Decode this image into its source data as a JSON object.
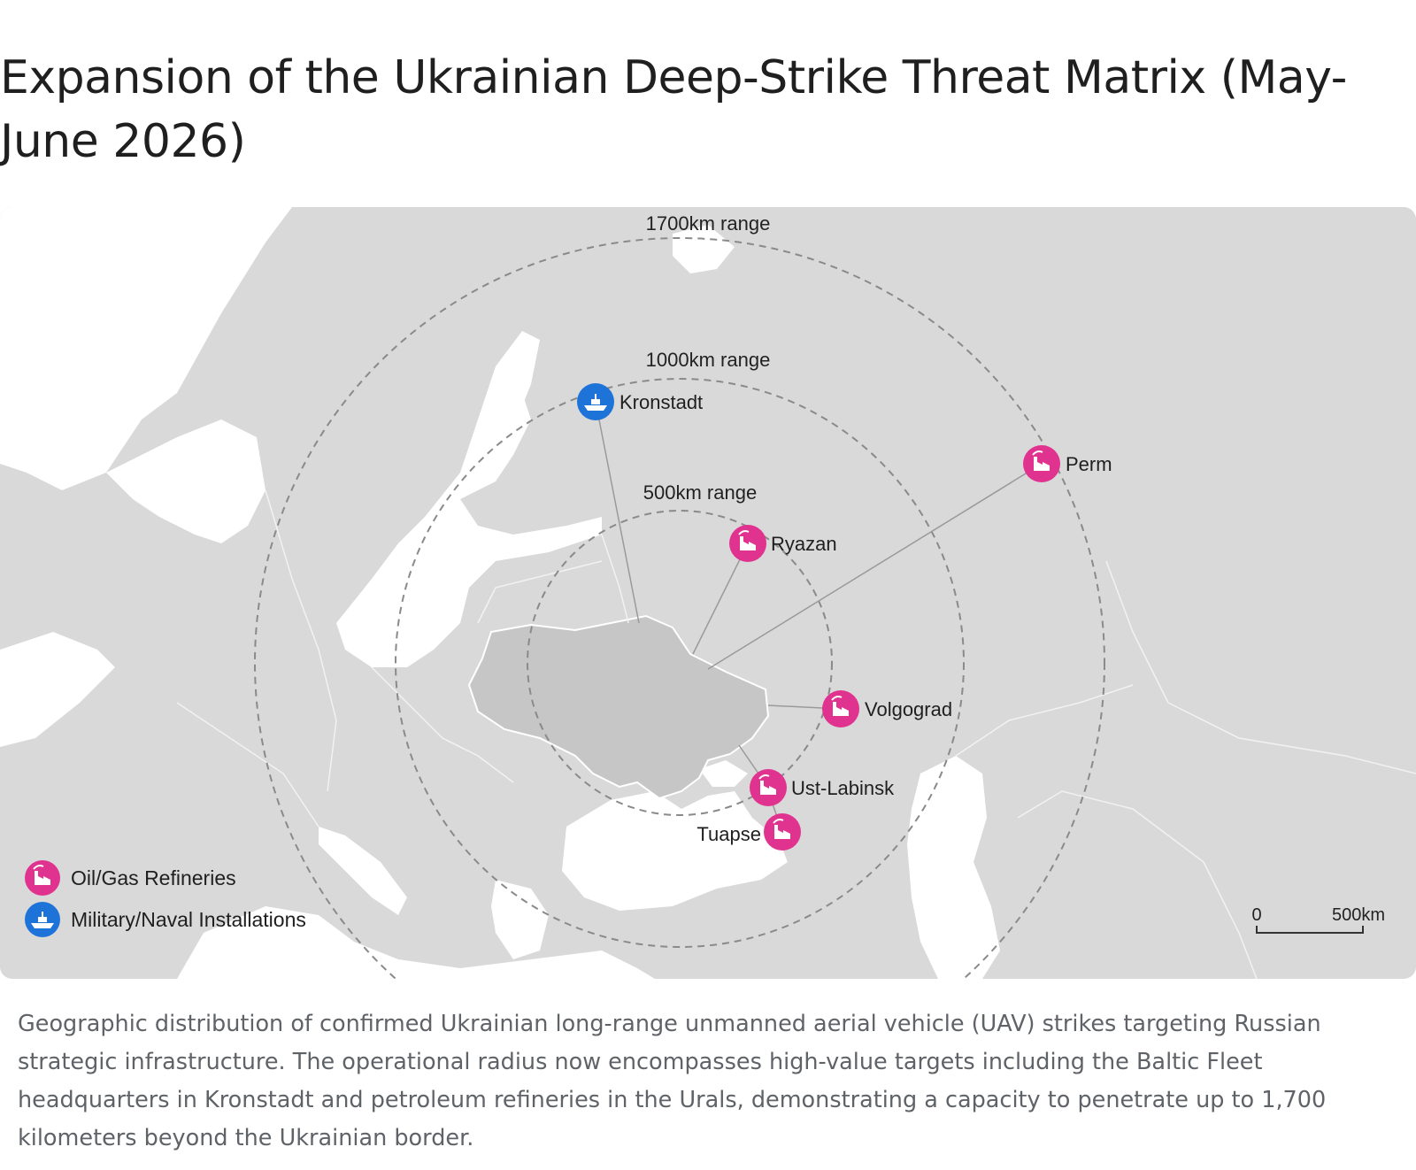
{
  "title": "Expansion of the Ukrainian Deep-Strike Threat Matrix (May-June 2026)",
  "map": {
    "ranges": [
      {
        "label": "1700km range",
        "km": 1700
      },
      {
        "label": "1000km range",
        "km": 1000
      },
      {
        "label": "500km range",
        "km": 500
      }
    ],
    "targets": [
      {
        "name": "Kronstadt",
        "type": "military-naval",
        "icon": "ship-icon"
      },
      {
        "name": "Perm",
        "type": "refinery",
        "icon": "factory-icon"
      },
      {
        "name": "Ryazan",
        "type": "refinery",
        "icon": "factory-icon"
      },
      {
        "name": "Volgograd",
        "type": "refinery",
        "icon": "factory-icon"
      },
      {
        "name": "Ust-Labinsk",
        "type": "refinery",
        "icon": "factory-icon"
      },
      {
        "name": "Tuapse",
        "type": "refinery",
        "icon": "factory-icon"
      }
    ],
    "legend": {
      "refinery_label": "Oil/Gas Refineries",
      "military_label": "Military/Naval Installations"
    },
    "scale": {
      "start_label": "0",
      "end_label": "500km"
    },
    "colors": {
      "refinery": "#e0338f",
      "military": "#1e73d8",
      "land": "#d9d9d9",
      "water": "#ffffff",
      "ukraine": "#c6c6c6",
      "range_ring": "#8a8a8a"
    }
  },
  "caption": "Geographic distribution of confirmed Ukrainian long-range unmanned aerial vehicle (UAV) strikes targeting Russian strategic infrastructure. The operational radius now encompasses high-value targets including the Baltic Fleet headquarters in Kronstadt and petroleum refineries in the Urals, demonstrating a capacity to penetrate up to 1,700 kilometers beyond the Ukrainian border."
}
